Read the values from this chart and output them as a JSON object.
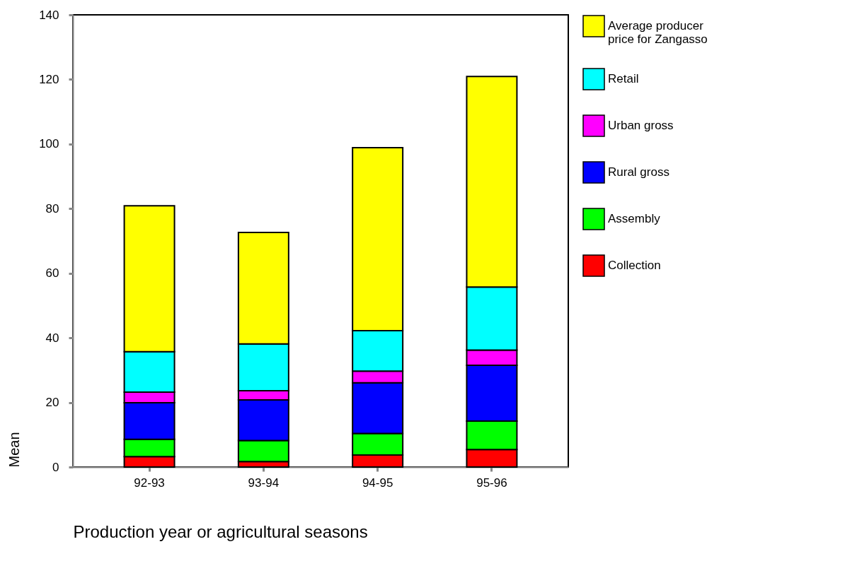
{
  "chart_data": {
    "type": "bar",
    "stacked": true,
    "xlabel": "Production year or agricultural seasons",
    "ylabel": "Mean",
    "categories": [
      "92-93",
      "93-94",
      "94-95",
      "95-96"
    ],
    "series": [
      {
        "name": "Collection",
        "color": "#ff0000",
        "values": [
          3.2,
          1.7,
          3.7,
          5.4
        ]
      },
      {
        "name": "Assembly",
        "color": "#00ff00",
        "values": [
          5.4,
          6.5,
          6.7,
          8.8
        ]
      },
      {
        "name": "Rural gross",
        "color": "#0000ff",
        "values": [
          11.3,
          12.6,
          15.7,
          17.3
        ]
      },
      {
        "name": "Urban gross",
        "color": "#ff00ff",
        "values": [
          3.3,
          2.8,
          3.6,
          4.7
        ]
      },
      {
        "name": "Retail",
        "color": "#00ffff",
        "values": [
          12.5,
          14.5,
          12.5,
          19.5
        ]
      },
      {
        "name": "Average producer price for Zangasso",
        "color": "#ffff00",
        "values": [
          45.2,
          34.5,
          56.7,
          65.2
        ]
      }
    ],
    "ylim": [
      0,
      140
    ],
    "yticks": [
      0,
      20,
      40,
      60,
      80,
      100,
      120,
      140
    ],
    "grid": false,
    "legend": "right"
  }
}
